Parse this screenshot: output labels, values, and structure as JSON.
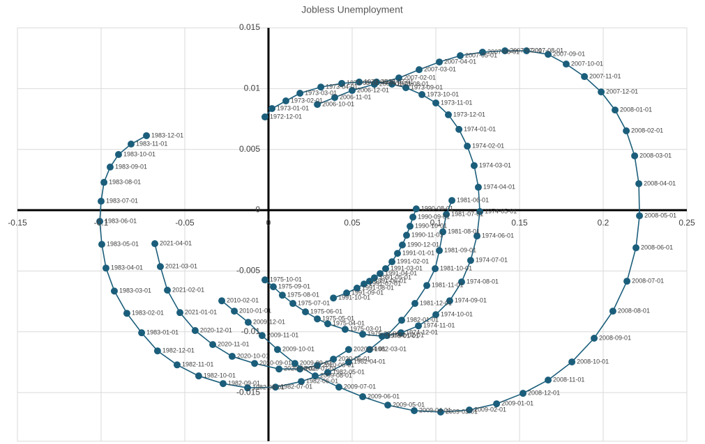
{
  "chart_data": {
    "type": "scatter",
    "title": "Jobless Unemployment",
    "color": "#1b5e7b",
    "grid": true,
    "xlim": [
      -0.15,
      0.25
    ],
    "ylim": [
      -0.019,
      0.015
    ],
    "xticks": [
      -0.15,
      -0.1,
      -0.05,
      0,
      0.05,
      0.1,
      0.15,
      0.2,
      0.25
    ],
    "yticks": [
      -0.015,
      -0.01,
      -0.005,
      0,
      0.005,
      0.01,
      0.015
    ],
    "x": [
      -0.0021,
      0.0021,
      0.0104,
      0.0188,
      0.0313,
      0.0438,
      0.0542,
      0.0646,
      0.0738,
      0.0821,
      0.0917,
      0.1,
      0.1075,
      0.1138,
      0.1188,
      0.1229,
      0.1254,
      0.1263,
      0.1246,
      0.1208,
      0.1154,
      0.1083,
      0.1,
      0.0896,
      0.0792,
      0.0679,
      0.0563,
      0.0458,
      0.0354,
      0.0292,
      0.0221,
      0.0146,
      0.0083,
      0.0029,
      -0.0021,
      null,
      0.1096,
      0.1063,
      0.1042,
      0.1021,
      0.0996,
      0.0946,
      0.0875,
      0.0796,
      0.0708,
      0.0604,
      0.0479,
      0.0354,
      0.0196,
      0.0042,
      -0.0125,
      -0.0271,
      -0.0417,
      -0.0546,
      -0.0663,
      -0.0758,
      -0.0846,
      -0.0921,
      -0.0971,
      -0.0996,
      -0.1008,
      -0.1,
      -0.0983,
      -0.0946,
      -0.0896,
      -0.0821,
      -0.0729,
      null,
      0.0883,
      0.0863,
      0.0846,
      0.0825,
      0.08,
      0.0771,
      0.0738,
      0.07,
      0.0667,
      0.0633,
      0.0604,
      0.0571,
      0.0529,
      0.0467,
      0.0388,
      null,
      0.0292,
      0.0396,
      0.05,
      0.0633,
      0.0779,
      0.09,
      0.1021,
      0.1146,
      0.1279,
      0.1413,
      0.1542,
      0.1671,
      0.1779,
      0.1888,
      0.1988,
      0.2071,
      0.2138,
      0.2188,
      0.2213,
      0.2217,
      0.2196,
      0.2142,
      0.2058,
      0.1946,
      0.1813,
      0.1671,
      0.1521,
      0.1363,
      0.12,
      0.1029,
      0.0871,
      0.0713,
      0.0563,
      0.0421,
      0.0279,
      0.0158,
      0.0054,
      -0.0038,
      -0.0121,
      -0.0204,
      -0.0279,
      null,
      0.0479,
      0.0388,
      0.0292,
      0.0188,
      0.0063,
      -0.0083,
      -0.0217,
      -0.0333,
      -0.0438,
      -0.0529,
      -0.0604,
      -0.0646,
      -0.0679
    ],
    "values": [
      0.00767,
      0.00836,
      0.00899,
      0.00962,
      0.01013,
      0.01043,
      0.01054,
      0.01054,
      0.01037,
      0.01008,
      0.00951,
      0.00882,
      0.00785,
      0.00665,
      0.00527,
      0.00367,
      0.00189,
      -0.00011,
      -0.00212,
      -0.00413,
      -0.0059,
      -0.00745,
      -0.00859,
      -0.00951,
      -0.01008,
      -0.01037,
      -0.0102,
      -0.0098,
      -0.00934,
      -0.00894,
      -0.00836,
      -0.00767,
      -0.00699,
      -0.0063,
      -0.00573,
      null,
      0.0008,
      -0.00034,
      -0.00178,
      -0.00332,
      -0.00481,
      -0.00619,
      -0.00767,
      -0.00905,
      -0.01031,
      -0.01146,
      -0.01249,
      -0.01335,
      -0.01409,
      -0.01455,
      -0.01461,
      -0.01426,
      -0.01363,
      -0.01272,
      -0.01157,
      -0.01008,
      -0.00848,
      -0.00665,
      -0.00476,
      -0.00281,
      -0.00092,
      0.00074,
      0.00229,
      0.00355,
      0.00458,
      0.00544,
      0.00613,
      null,
      0.00011,
      -0.00057,
      -0.00132,
      -0.00206,
      -0.00286,
      -0.00355,
      -0.00424,
      -0.00481,
      -0.00521,
      -0.00556,
      -0.00584,
      -0.00607,
      -0.00641,
      -0.00681,
      -0.00722,
      null,
      0.0087,
      0.00927,
      0.00985,
      0.01036,
      0.01088,
      0.01156,
      0.01219,
      0.01271,
      0.013,
      0.01311,
      0.01311,
      0.01282,
      0.01202,
      0.01099,
      0.00973,
      0.00824,
      0.00653,
      0.00447,
      0.00218,
      -0.00046,
      -0.00309,
      -0.00584,
      -0.0083,
      -0.01053,
      -0.01248,
      -0.01397,
      -0.01506,
      -0.01592,
      -0.01643,
      -0.0166,
      -0.01649,
      -0.01603,
      -0.01534,
      -0.01455,
      -0.01363,
      -0.0126,
      -0.01146,
      -0.01031,
      -0.00922,
      -0.0083,
      -0.00745,
      null,
      -0.01146,
      -0.01225,
      -0.01277,
      -0.01306,
      -0.01306,
      -0.0126,
      -0.01202,
      -0.01105,
      -0.0099,
      -0.00842,
      -0.00658,
      -0.00464,
      -0.00275
    ],
    "point_labels": [
      "1972-12-01",
      "1973-01-01",
      "1973-02-01",
      "1973-03-01",
      "1973-04-01",
      "1973-05-01",
      "1973-06-01",
      "1973-07-01",
      "1973-08-01",
      "1973-09-01",
      "1973-10-01",
      "1973-11-01",
      "1973-12-01",
      "1974-01-01",
      "1974-02-01",
      "1974-03-01",
      "1974-04-01",
      "1974-05-01",
      "1974-06-01",
      "1974-07-01",
      "1974-08-01",
      "1974-09-01",
      "1974-10-01",
      "1974-11-01",
      "1974-12-01",
      "1975-01-01",
      "1975-02-01",
      "1975-03-01",
      "1975-04-01",
      "1975-05-01",
      "1975-06-01",
      "1975-07-01",
      "1975-08-01",
      "1975-09-01",
      "1975-10-01",
      null,
      "1981-06-01",
      "1981-07-01",
      "1981-08-01",
      "1981-09-01",
      "1981-10-01",
      "1981-11-01",
      "1981-12-01",
      "1982-01-01",
      "1982-02-01",
      "1982-03-01",
      "1982-04-01",
      "1982-05-01",
      "1982-06-01",
      "1982-07-01",
      "1982-08-01",
      "1982-09-01",
      "1982-10-01",
      "1982-11-01",
      "1982-12-01",
      "1983-01-01",
      "1983-02-01",
      "1983-03-01",
      "1983-04-01",
      "1983-05-01",
      "1983-06-01",
      "1983-07-01",
      "1983-08-01",
      "1983-09-01",
      "1983-10-01",
      "1983-11-01",
      "1983-12-01",
      null,
      "1990-08-01",
      "1990-09-01",
      "1990-10-01",
      "1990-11-01",
      "1990-12-01",
      "1991-01-01",
      "1991-02-01",
      "1991-03-01",
      "1991-04-01",
      "1991-05-01",
      "1991-06-01",
      "1991-07-01",
      "1991-08-01",
      "1991-09-01",
      "1991-10-01",
      null,
      "2006-10-01",
      "2006-11-01",
      "2006-12-01",
      "2007-01-01",
      "2007-02-01",
      "2007-03-01",
      "2007-04-01",
      "2007-05-01",
      "2007-06-01",
      "2007-07-01",
      "2007-08-01",
      "2007-09-01",
      "2007-10-01",
      "2007-11-01",
      "2007-12-01",
      "2008-01-01",
      "2008-02-01",
      "2008-03-01",
      "2008-04-01",
      "2008-05-01",
      "2008-06-01",
      "2008-07-01",
      "2008-08-01",
      "2008-09-01",
      "2008-10-01",
      "2008-11-01",
      "2008-12-01",
      "2009-01-01",
      "2009-02-01",
      "2009-03-01",
      "2009-04-01",
      "2009-05-01",
      "2009-06-01",
      "2009-07-01",
      "2009-08-01",
      "2009-09-01",
      "2009-10-01",
      "2009-11-01",
      "2009-12-01",
      "2010-01-01",
      "2010-02-01",
      null,
      "2020-04-01",
      "2020-05-01",
      "2020-06-01",
      "2020-07-01",
      "2020-08-01",
      "2020-09-01",
      "2020-10-01",
      "2020-11-01",
      "2020-12-01",
      "2021-01-01",
      "2021-02-01",
      "2021-03-01",
      "2021-04-01"
    ]
  }
}
